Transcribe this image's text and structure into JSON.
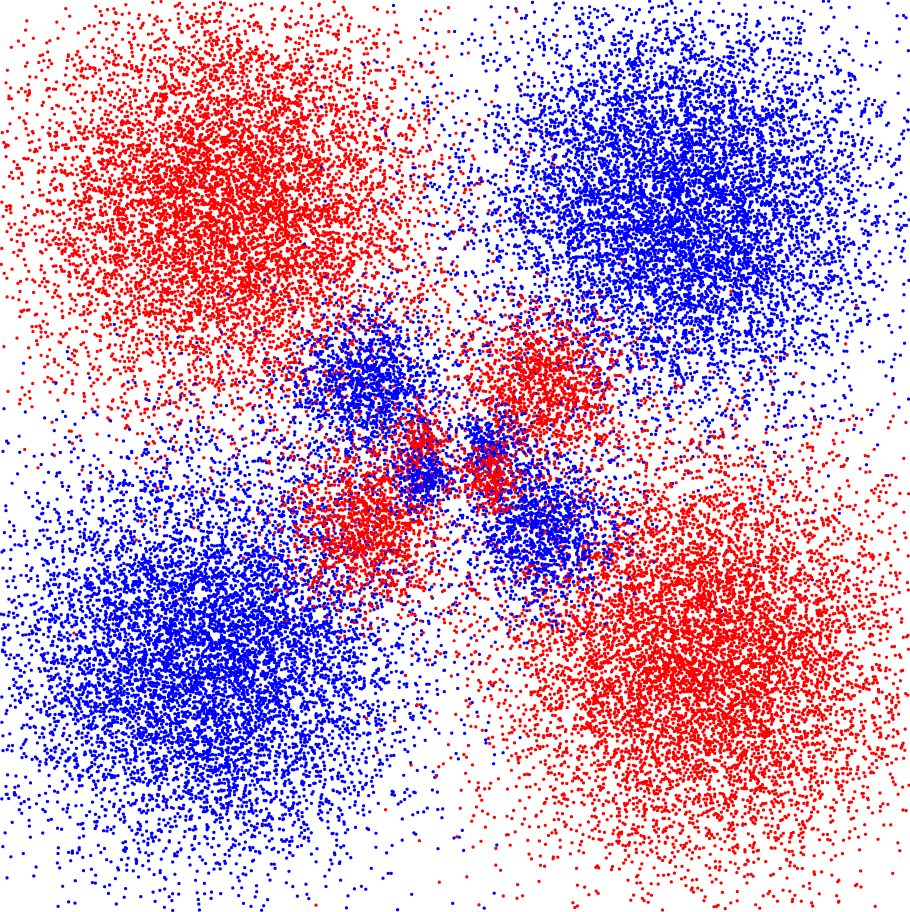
{
  "chart_data": {
    "type": "scatter",
    "title": "",
    "xlabel": "",
    "ylabel": "",
    "axes_visible": false,
    "grid": false,
    "legend": "none",
    "xlim": [
      -4,
      4
    ],
    "ylim": [
      -4,
      4
    ],
    "clusters": [
      {
        "color": "#ff0000",
        "center": [
          -2.0,
          2.2
        ],
        "spread": [
          0.9,
          0.9
        ],
        "count": 9000
      },
      {
        "color": "#0000ff",
        "center": [
          2.0,
          2.2
        ],
        "spread": [
          0.9,
          0.9
        ],
        "count": 9000
      },
      {
        "color": "#0000ff",
        "center": [
          -2.2,
          -1.8
        ],
        "spread": [
          0.9,
          0.9
        ],
        "count": 9000
      },
      {
        "color": "#ff0000",
        "center": [
          2.2,
          -1.8
        ],
        "spread": [
          0.9,
          0.9
        ],
        "count": 9000
      },
      {
        "color": "#0000ff",
        "center": [
          -0.75,
          0.6
        ],
        "spread": [
          0.35,
          0.35
        ],
        "count": 1400
      },
      {
        "color": "#ff0000",
        "center": [
          0.75,
          0.6
        ],
        "spread": [
          0.35,
          0.35
        ],
        "count": 1400
      },
      {
        "color": "#ff0000",
        "center": [
          -0.75,
          -0.65
        ],
        "spread": [
          0.35,
          0.35
        ],
        "count": 1400
      },
      {
        "color": "#0000ff",
        "center": [
          0.75,
          -0.65
        ],
        "spread": [
          0.35,
          0.35
        ],
        "count": 1400
      },
      {
        "color": "#ff0000",
        "center": [
          -0.3,
          0.1
        ],
        "spread": [
          0.15,
          0.15
        ],
        "count": 300
      },
      {
        "color": "#0000ff",
        "center": [
          0.3,
          0.1
        ],
        "spread": [
          0.15,
          0.15
        ],
        "count": 300
      },
      {
        "color": "#0000ff",
        "center": [
          -0.3,
          -0.2
        ],
        "spread": [
          0.15,
          0.15
        ],
        "count": 300
      },
      {
        "color": "#ff0000",
        "center": [
          0.3,
          -0.2
        ],
        "spread": [
          0.15,
          0.15
        ],
        "count": 300
      }
    ]
  }
}
